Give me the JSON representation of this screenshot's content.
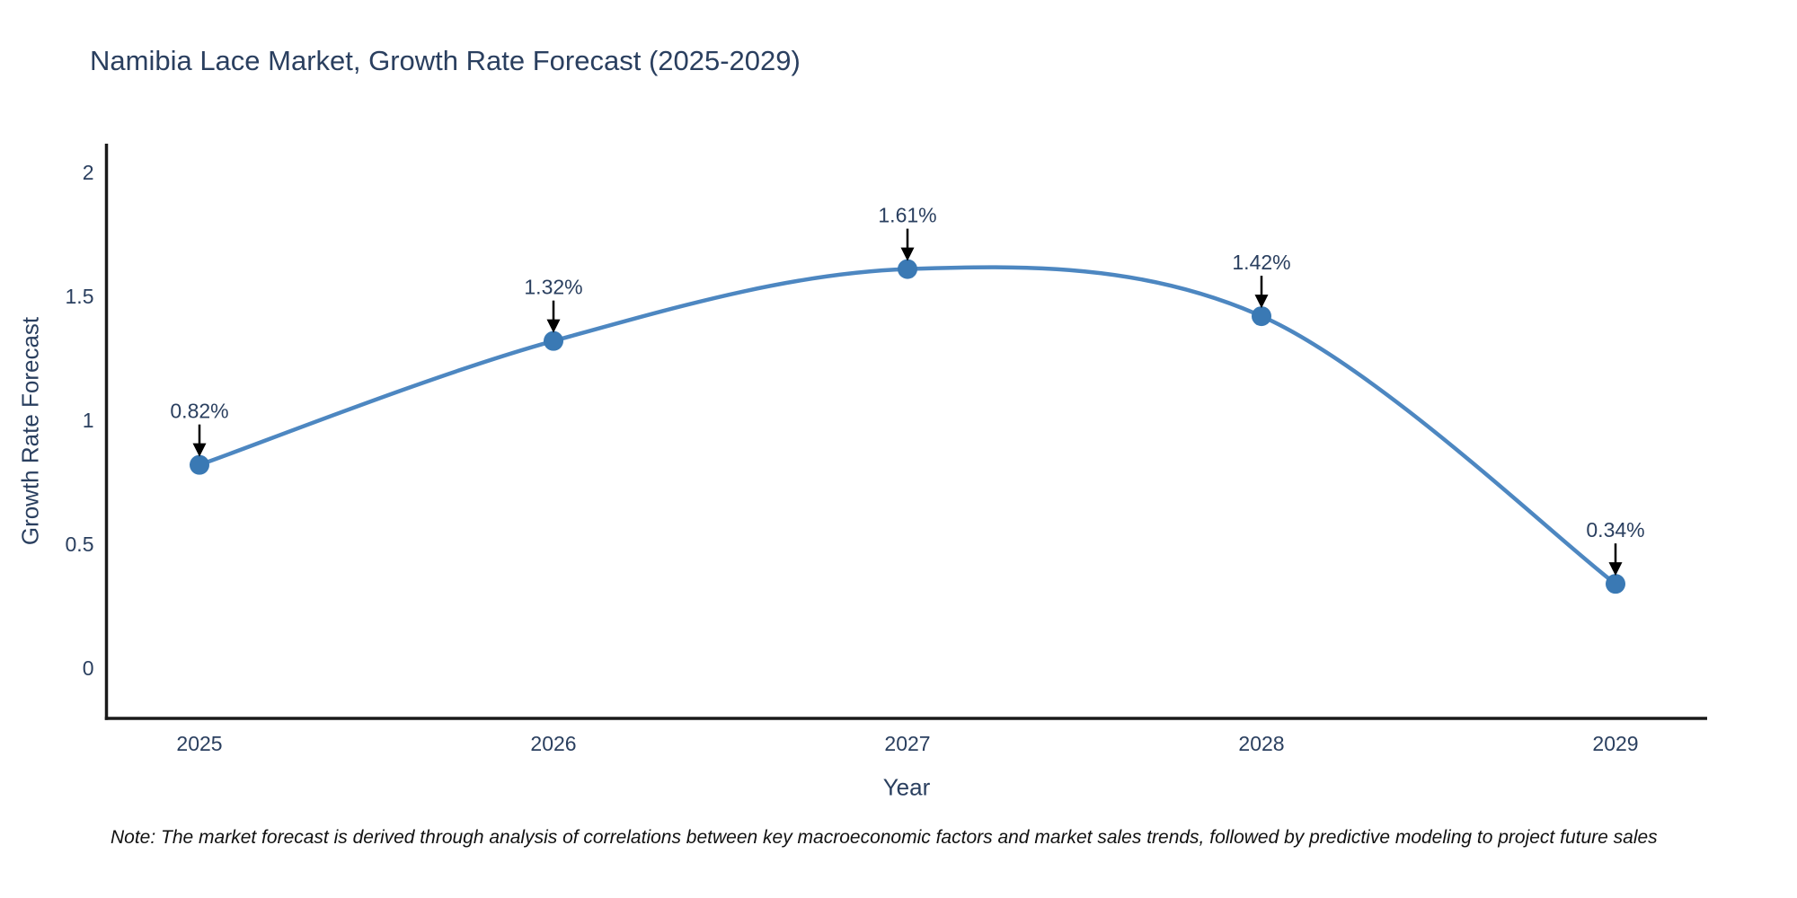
{
  "page": {
    "background_color": "#ffffff"
  },
  "chart_data": {
    "type": "line",
    "title": "Namibia Lace Market, Growth Rate Forecast (2025-2029)",
    "xlabel": "Year",
    "ylabel": "Growth Rate Forecast",
    "categories": [
      "2025",
      "2026",
      "2027",
      "2028",
      "2029"
    ],
    "x": [
      2025,
      2026,
      2027,
      2028,
      2029
    ],
    "values": [
      0.82,
      1.32,
      1.61,
      1.42,
      0.34
    ],
    "point_labels": [
      "0.82%",
      "1.32%",
      "1.61%",
      "1.42%",
      "0.34%"
    ],
    "yticks": [
      0,
      0.5,
      1,
      1.5,
      2
    ],
    "ytick_labels": [
      "0",
      "0.5",
      "1",
      "1.5",
      "2"
    ],
    "ylim": [
      -0.2,
      2.12
    ],
    "xlim": [
      2024.74,
      2029.26
    ],
    "grid": false,
    "legend": {
      "visible": false
    },
    "line_style": "spline",
    "annotations": "black arrows pointing down at each marker with percent label above",
    "colors": {
      "line": "#4d87c1",
      "marker": "#3a79b4",
      "axis": "#1a1a1a",
      "text": "#2a3f5f",
      "annotation_arrow": "#000000"
    }
  },
  "note": {
    "text": "Note: The market forecast is derived through analysis of correlations between key macroeconomic factors and market sales trends, followed by predictive modeling to project future sales"
  }
}
